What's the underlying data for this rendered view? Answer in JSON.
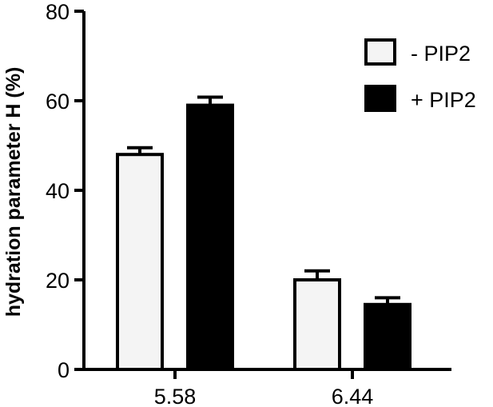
{
  "chart_data": {
    "type": "bar",
    "categories": [
      "5.58",
      "6.44"
    ],
    "series": [
      {
        "name": "- PIP2",
        "values": [
          48,
          20
        ],
        "errors": [
          1.5,
          2
        ],
        "color": "#f4f4f4"
      },
      {
        "name": "+ PIP2",
        "values": [
          59,
          14.5
        ],
        "errors": [
          1.8,
          1.5
        ],
        "color": "#000000"
      }
    ],
    "title": "",
    "xlabel": "",
    "ylabel": "hydration parameter H (%)",
    "ylim": [
      0,
      80
    ],
    "yticks": [
      0,
      20,
      40,
      60,
      80
    ],
    "grid": false,
    "legend_position": "top-right",
    "error_bars": "upper"
  }
}
